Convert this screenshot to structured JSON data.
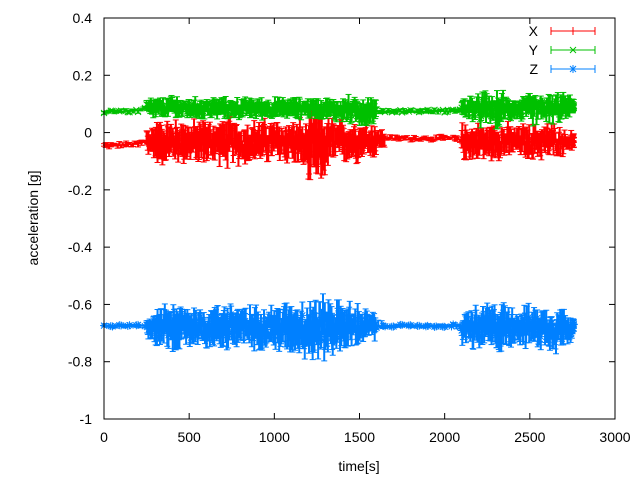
{
  "chart_data": {
    "type": "line",
    "title": "",
    "xlabel": "time[s]",
    "ylabel": "acceleration [g]",
    "xlim": [
      0,
      3000
    ],
    "ylim": [
      -1,
      0.4
    ],
    "xticks": [
      "0",
      "500",
      "1000",
      "1500",
      "2000",
      "2500",
      "3000"
    ],
    "yticks": [
      "0.4",
      "0.2",
      "0",
      "-0.2",
      "-0.4",
      "-0.6",
      "-0.8",
      "-1"
    ],
    "grid": false,
    "legend_position": "top-right",
    "style": "errorbars",
    "x": [
      0,
      50,
      100,
      150,
      200,
      250,
      300,
      350,
      400,
      450,
      500,
      550,
      600,
      650,
      700,
      750,
      800,
      850,
      900,
      950,
      1000,
      1050,
      1100,
      1150,
      1200,
      1250,
      1300,
      1350,
      1400,
      1450,
      1500,
      1550,
      1600,
      1650,
      1700,
      1750,
      1800,
      1850,
      1900,
      1950,
      2000,
      2050,
      2100,
      2150,
      2200,
      2250,
      2300,
      2350,
      2400,
      2450,
      2500,
      2550,
      2600,
      2650,
      2700,
      2750
    ],
    "series": [
      {
        "name": "X",
        "color": "#ff0000",
        "values": [
          -0.045,
          -0.045,
          -0.043,
          -0.042,
          -0.04,
          -0.03,
          -0.03,
          -0.035,
          -0.03,
          -0.03,
          -0.035,
          -0.03,
          -0.03,
          -0.035,
          -0.035,
          -0.03,
          -0.04,
          -0.035,
          -0.03,
          -0.03,
          -0.03,
          -0.035,
          -0.03,
          -0.04,
          -0.06,
          -0.06,
          -0.04,
          -0.03,
          -0.03,
          -0.03,
          -0.025,
          -0.025,
          -0.025,
          -0.02,
          -0.02,
          -0.02,
          -0.02,
          -0.02,
          -0.02,
          -0.02,
          -0.02,
          -0.02,
          -0.03,
          -0.035,
          -0.03,
          -0.035,
          -0.03,
          -0.03,
          -0.03,
          -0.03,
          -0.035,
          -0.03,
          -0.03,
          -0.03,
          -0.03,
          -0.03
        ],
        "spread": [
          0.01,
          0.01,
          0.01,
          0.01,
          0.012,
          0.05,
          0.06,
          0.06,
          0.06,
          0.06,
          0.06,
          0.06,
          0.06,
          0.06,
          0.07,
          0.06,
          0.06,
          0.06,
          0.06,
          0.06,
          0.06,
          0.06,
          0.06,
          0.07,
          0.1,
          0.1,
          0.07,
          0.06,
          0.06,
          0.06,
          0.05,
          0.05,
          0.03,
          0.01,
          0.01,
          0.01,
          0.01,
          0.01,
          0.01,
          0.01,
          0.01,
          0.012,
          0.05,
          0.05,
          0.05,
          0.05,
          0.05,
          0.05,
          0.04,
          0.05,
          0.05,
          0.05,
          0.05,
          0.04,
          0.03,
          0.02
        ]
      },
      {
        "name": "Y",
        "color": "#00c000",
        "values": [
          0.072,
          0.075,
          0.075,
          0.075,
          0.076,
          0.085,
          0.085,
          0.085,
          0.09,
          0.085,
          0.085,
          0.085,
          0.085,
          0.085,
          0.085,
          0.085,
          0.085,
          0.085,
          0.085,
          0.085,
          0.085,
          0.085,
          0.085,
          0.085,
          0.085,
          0.085,
          0.085,
          0.08,
          0.08,
          0.08,
          0.075,
          0.075,
          0.075,
          0.075,
          0.075,
          0.075,
          0.075,
          0.075,
          0.075,
          0.075,
          0.075,
          0.075,
          0.085,
          0.085,
          0.08,
          0.085,
          0.075,
          0.085,
          0.085,
          0.08,
          0.085,
          0.08,
          0.085,
          0.08,
          0.09,
          0.09
        ],
        "spread": [
          0.008,
          0.008,
          0.008,
          0.008,
          0.008,
          0.03,
          0.03,
          0.03,
          0.035,
          0.03,
          0.03,
          0.03,
          0.03,
          0.03,
          0.03,
          0.03,
          0.03,
          0.03,
          0.03,
          0.03,
          0.03,
          0.03,
          0.03,
          0.03,
          0.03,
          0.03,
          0.03,
          0.035,
          0.04,
          0.035,
          0.045,
          0.04,
          0.01,
          0.008,
          0.008,
          0.008,
          0.008,
          0.008,
          0.008,
          0.008,
          0.008,
          0.008,
          0.035,
          0.04,
          0.05,
          0.04,
          0.05,
          0.035,
          0.03,
          0.04,
          0.045,
          0.04,
          0.04,
          0.045,
          0.03,
          0.02
        ]
      },
      {
        "name": "Z",
        "color": "#0080ff",
        "values": [
          -0.675,
          -0.675,
          -0.675,
          -0.675,
          -0.675,
          -0.675,
          -0.68,
          -0.68,
          -0.68,
          -0.68,
          -0.68,
          -0.675,
          -0.68,
          -0.68,
          -0.675,
          -0.675,
          -0.68,
          -0.68,
          -0.68,
          -0.68,
          -0.68,
          -0.68,
          -0.68,
          -0.68,
          -0.685,
          -0.685,
          -0.68,
          -0.675,
          -0.675,
          -0.68,
          -0.675,
          -0.675,
          -0.675,
          -0.675,
          -0.675,
          -0.675,
          -0.675,
          -0.675,
          -0.675,
          -0.675,
          -0.675,
          -0.675,
          -0.68,
          -0.68,
          -0.685,
          -0.68,
          -0.68,
          -0.68,
          -0.675,
          -0.675,
          -0.68,
          -0.68,
          -0.68,
          -0.685,
          -0.68,
          -0.675
        ],
        "spread": [
          0.006,
          0.006,
          0.006,
          0.006,
          0.006,
          0.04,
          0.05,
          0.06,
          0.07,
          0.06,
          0.06,
          0.06,
          0.06,
          0.06,
          0.07,
          0.07,
          0.06,
          0.06,
          0.06,
          0.06,
          0.07,
          0.07,
          0.07,
          0.08,
          0.09,
          0.09,
          0.08,
          0.07,
          0.07,
          0.06,
          0.05,
          0.04,
          0.015,
          0.006,
          0.006,
          0.006,
          0.006,
          0.006,
          0.006,
          0.006,
          0.006,
          0.01,
          0.05,
          0.06,
          0.06,
          0.07,
          0.07,
          0.06,
          0.05,
          0.06,
          0.06,
          0.06,
          0.06,
          0.07,
          0.05,
          0.02
        ]
      }
    ]
  }
}
